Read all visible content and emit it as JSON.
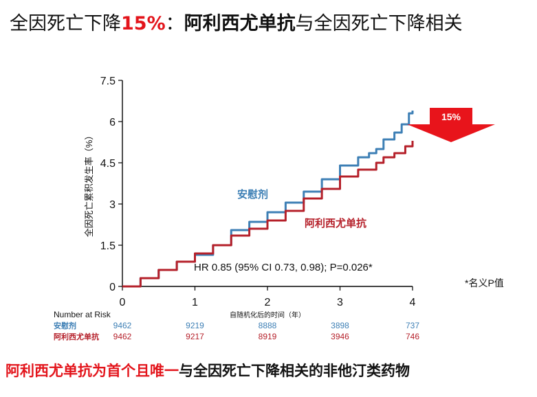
{
  "header": {
    "part1": "全因死亡下降",
    "pct": "15%",
    "part2": "：",
    "drug": "阿利西尤单抗",
    "part3": "与全因死亡下降相关"
  },
  "footer": {
    "highlight": "阿利西尤单抗为首个且唯一",
    "rest": "与全因死亡下降相关的非他汀类药物"
  },
  "arrow_label": "15%",
  "hr_text": "HR 0.85 (95% CI 0.73, 0.98); P=0.026*",
  "footnote": "*名义P值",
  "colors": {
    "placebo": "#3d7fb5",
    "alirocumab": "#b5202a",
    "arrow": "#e8141b"
  },
  "chart_data": {
    "type": "line",
    "xlabel": "自随机化后的时间（年）",
    "ylabel": "全因死亡累积发生率（%）",
    "xlim": [
      0,
      4
    ],
    "ylim": [
      0,
      7.5
    ],
    "xticks": [
      0,
      1,
      2,
      3,
      4
    ],
    "yticks": [
      0,
      1.5,
      3,
      4.5,
      6,
      7.5
    ],
    "yticklabels": [
      "0",
      "1.5",
      "3",
      "4.5",
      "6",
      "7.5"
    ],
    "series": [
      {
        "name": "安慰剂",
        "color": "#3d7fb5",
        "x": [
          0,
          0.25,
          0.5,
          0.75,
          1.0,
          1.25,
          1.5,
          1.75,
          2.0,
          2.25,
          2.5,
          2.75,
          3.0,
          3.25,
          3.4,
          3.5,
          3.6,
          3.75,
          3.85,
          3.95,
          4.0
        ],
        "y": [
          0,
          0.3,
          0.6,
          0.9,
          1.15,
          1.5,
          2.05,
          2.35,
          2.7,
          3.05,
          3.45,
          3.9,
          4.4,
          4.7,
          4.85,
          5.0,
          5.35,
          5.6,
          5.9,
          6.3,
          6.4
        ]
      },
      {
        "name": "阿利西尤单抗",
        "color": "#b5202a",
        "x": [
          0,
          0.25,
          0.5,
          0.75,
          1.0,
          1.25,
          1.5,
          1.75,
          2.0,
          2.25,
          2.5,
          2.75,
          3.0,
          3.25,
          3.5,
          3.6,
          3.75,
          3.9,
          4.0
        ],
        "y": [
          0,
          0.3,
          0.6,
          0.9,
          1.2,
          1.5,
          1.85,
          2.1,
          2.4,
          2.75,
          3.2,
          3.55,
          4.0,
          4.25,
          4.5,
          4.7,
          4.85,
          5.1,
          5.3
        ]
      }
    ],
    "risk_table": {
      "title": "Number at Risk",
      "rows": [
        {
          "label": "安慰剂",
          "values": [
            "9462",
            "9219",
            "8888",
            "3898",
            "737"
          ]
        },
        {
          "label": "阿利西尤单抗",
          "values": [
            "9462",
            "9217",
            "8919",
            "3946",
            "746"
          ]
        }
      ]
    }
  }
}
